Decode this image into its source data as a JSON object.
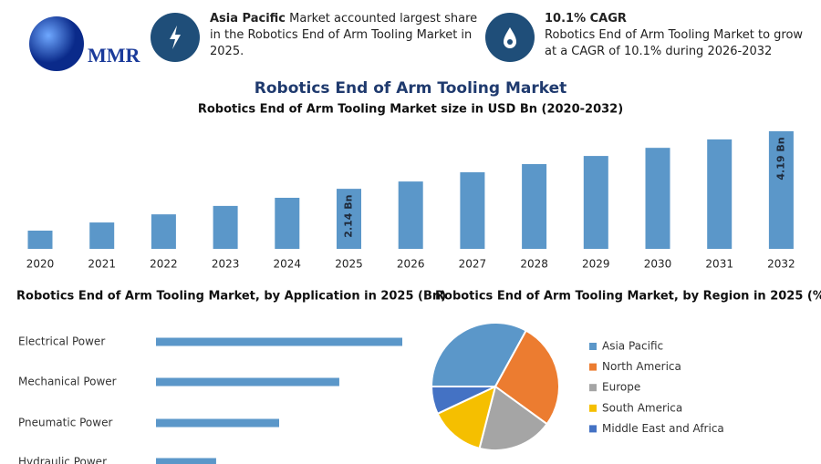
{
  "header": {
    "logo": "MMR",
    "info": [
      {
        "bold": "Asia Pacific",
        "text": "Market accounted largest share in the Robotics End of Arm Tooling Market in 2025."
      },
      {
        "bold": "10.1% CAGR",
        "text": "Robotics End of Arm Tooling Market to grow at a CAGR of 10.1% during 2026-2032"
      }
    ]
  },
  "chart_data": [
    {
      "type": "bar",
      "title": "Robotics End of Arm Tooling Market",
      "subtitle": "Robotics End of Arm Tooling Market size in USD Bn (2020-2032)",
      "categories": [
        "2020",
        "2021",
        "2022",
        "2023",
        "2024",
        "2025",
        "2026",
        "2027",
        "2028",
        "2029",
        "2030",
        "2031",
        "2032"
      ],
      "values": [
        0.65,
        0.94,
        1.23,
        1.53,
        1.82,
        2.14,
        2.4,
        2.73,
        3.02,
        3.31,
        3.6,
        3.9,
        4.19
      ],
      "value_labels": [
        null,
        null,
        null,
        null,
        null,
        "2.14 Bn",
        null,
        null,
        null,
        null,
        null,
        null,
        "4.19 Bn"
      ],
      "color": "#5b97c9"
    },
    {
      "type": "hbar",
      "title": "Robotics End of Arm Tooling Market, by Application in 2025 (Bn)",
      "categories": [
        "Electrical Power",
        "Mechanical Power",
        "Pneumatic Power",
        "Hydraulic Power"
      ],
      "values": [
        0.86,
        0.64,
        0.43,
        0.21
      ],
      "color": "#5b97c9"
    },
    {
      "type": "pie",
      "title": "Robotics End of Arm Tooling Market, by Region in 2025 (%)",
      "categories": [
        "Asia Pacific",
        "North America",
        "Europe",
        "South America",
        "Middle East and Africa"
      ],
      "values": [
        33,
        27,
        19,
        14,
        7
      ],
      "colors": [
        "#5b97c9",
        "#ec7c30",
        "#a5a5a5",
        "#f5bf00",
        "#4472c4"
      ]
    }
  ]
}
